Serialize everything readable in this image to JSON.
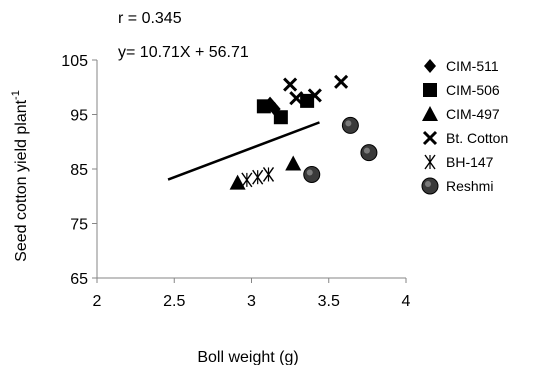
{
  "chart_data": {
    "type": "scatter",
    "annotations": {
      "r_text": "r = 0.345",
      "equation_text": "y= 10.71X + 56.71"
    },
    "xlabel": "Boll weight (g)",
    "ylabel": "Seed cotton yield plant",
    "ylabel_superscript": "-1",
    "xlim": [
      2,
      4
    ],
    "ylim": [
      65,
      105
    ],
    "x_ticks": [
      {
        "value": 2,
        "label": "2"
      },
      {
        "value": 2.5,
        "label": "2.5"
      },
      {
        "value": 3,
        "label": "3"
      },
      {
        "value": 3.5,
        "label": "3.5"
      },
      {
        "value": 4,
        "label": "4"
      }
    ],
    "y_ticks": [
      {
        "value": 65,
        "label": "65"
      },
      {
        "value": 75,
        "label": "75"
      },
      {
        "value": 85,
        "label": "85"
      },
      {
        "value": 95,
        "label": "95"
      },
      {
        "value": 105,
        "label": "105"
      }
    ],
    "trendline": {
      "slope": 10.71,
      "intercept": 56.71,
      "x_start": 2.46,
      "x_end": 3.44
    },
    "series": [
      {
        "name": "CIM-511",
        "marker": "diamond",
        "color": "#000000",
        "points": [
          {
            "x": 3.12,
            "y": 97
          },
          {
            "x": 3.15,
            "y": 96
          }
        ]
      },
      {
        "name": "CIM-506",
        "marker": "square",
        "color": "#000000",
        "points": [
          {
            "x": 3.08,
            "y": 96.5
          },
          {
            "x": 3.19,
            "y": 94.5
          },
          {
            "x": 3.36,
            "y": 97.5
          }
        ]
      },
      {
        "name": "CIM-497",
        "marker": "triangle",
        "color": "#000000",
        "points": [
          {
            "x": 2.91,
            "y": 82.5
          },
          {
            "x": 3.27,
            "y": 86
          }
        ]
      },
      {
        "name": "Bt. Cotton",
        "marker": "x",
        "color": "#000000",
        "points": [
          {
            "x": 3.25,
            "y": 100.5
          },
          {
            "x": 3.29,
            "y": 98
          },
          {
            "x": 3.41,
            "y": 98.5
          },
          {
            "x": 3.58,
            "y": 101
          }
        ]
      },
      {
        "name": "BH-147",
        "marker": "star",
        "color": "#000000",
        "points": [
          {
            "x": 2.97,
            "y": 83
          },
          {
            "x": 3.04,
            "y": 83.5
          },
          {
            "x": 3.11,
            "y": 84
          }
        ]
      },
      {
        "name": "Reshmi",
        "marker": "circle",
        "color": "#000000",
        "points": [
          {
            "x": 3.39,
            "y": 84
          },
          {
            "x": 3.64,
            "y": 93
          },
          {
            "x": 3.76,
            "y": 88
          }
        ]
      }
    ],
    "legend_position": "right",
    "grid": false
  }
}
